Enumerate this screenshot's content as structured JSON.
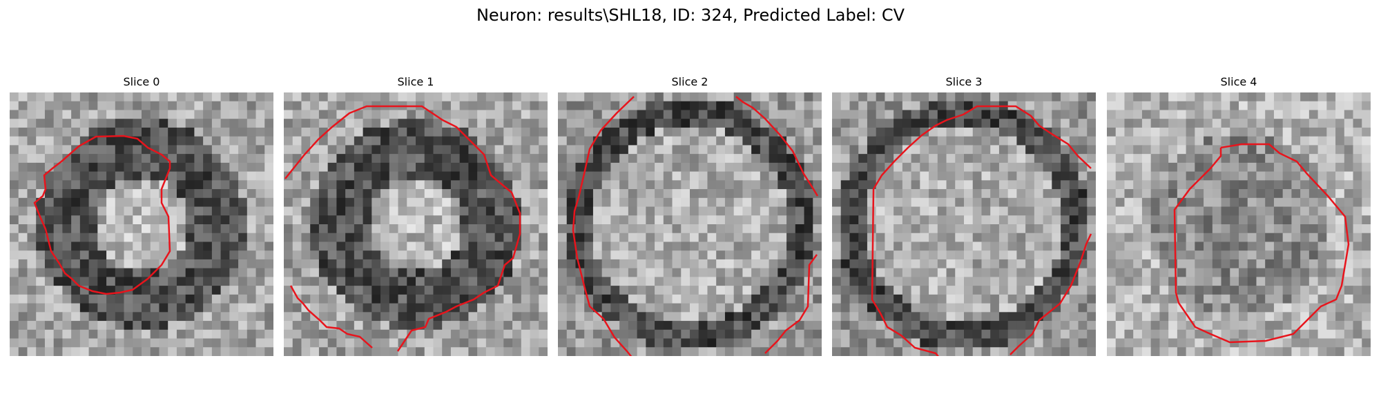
{
  "figure": {
    "title": "Neuron: results\\SHL18, ID: 324, Predicted Label: CV",
    "contour_color": "#e8141c"
  },
  "slices": [
    {
      "label": "Slice 0",
      "shape": "ring"
    },
    {
      "label": "Slice 1",
      "shape": "ring"
    },
    {
      "label": "Slice 2",
      "shape": "bright-disk"
    },
    {
      "label": "Slice 3",
      "shape": "bright-disk"
    },
    {
      "label": "Slice 4",
      "shape": "dim-disk"
    }
  ]
}
